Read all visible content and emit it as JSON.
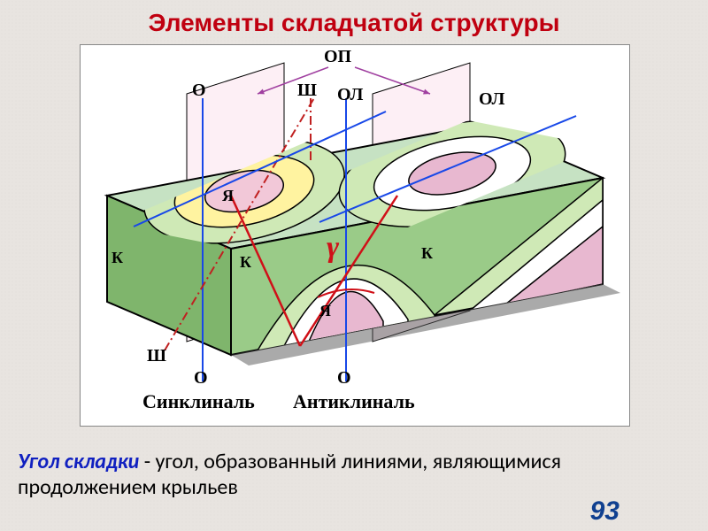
{
  "title": {
    "text": "Элементы складчатой структуры",
    "color": "#c00010",
    "fontsize": 28
  },
  "caption": {
    "term": "Угол складки",
    "rest": " - угол, образованный линиями, являющимися продолжением крыльев",
    "term_color": "#1020c0",
    "fontsize": 24
  },
  "page_number": {
    "text": "93",
    "color": "#104090",
    "fontsize": 30
  },
  "diagram": {
    "background": "#ffffff",
    "colors": {
      "block_side": "#9acb88",
      "block_side_dark": "#7fb56c",
      "block_top": "#c6e2c3",
      "syn_outer": "#cfe9b6",
      "syn_mid": "#fff3a0",
      "syn_core": "#f2c8d8",
      "ant_outer": "#cfe9b6",
      "ant_mid": "#ffffff",
      "ant_core": "#e8b8d0",
      "plane_fill": "#fbe2ec",
      "axis_blue": "#1848e8",
      "axis_red": "#d01018",
      "dashdot": "#c02020",
      "outline": "#000000"
    },
    "labels": {
      "OP": "ОП",
      "O": "О",
      "SH": "Ш",
      "OL": "ОЛ",
      "K": "К",
      "YA": "Я",
      "syncline": "Синклиналь",
      "anticline": "Антиклиналь",
      "gamma": "γ"
    },
    "gamma": {
      "color": "#d01018",
      "fontsize": 34,
      "fontweight": "bold"
    },
    "label_fontsize": 20,
    "bottom_label_fontsize": 22,
    "line_width": 2,
    "angle_lines": [
      [
        248,
        340,
        170,
        170
      ],
      [
        248,
        340,
        358,
        170
      ]
    ]
  }
}
